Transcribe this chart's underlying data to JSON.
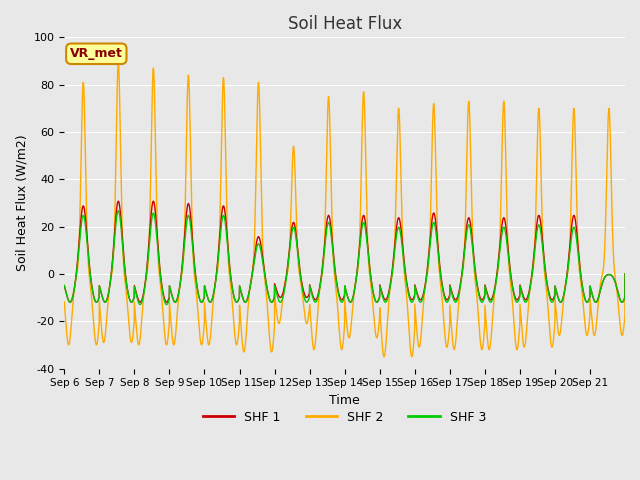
{
  "title": "Soil Heat Flux",
  "xlabel": "Time",
  "ylabel": "Soil Heat Flux (W/m2)",
  "ylim": [
    -40,
    100
  ],
  "yticks": [
    -40,
    -20,
    0,
    20,
    40,
    60,
    80,
    100
  ],
  "xtick_labels": [
    "Sep 6",
    "Sep 7",
    "Sep 8",
    "Sep 9",
    "Sep 10",
    "Sep 11",
    "Sep 12",
    "Sep 13",
    "Sep 14",
    "Sep 15",
    "Sep 16",
    "Sep 17",
    "Sep 18",
    "Sep 19",
    "Sep 20",
    "Sep 21"
  ],
  "legend_labels": [
    "SHF 1",
    "SHF 2",
    "SHF 3"
  ],
  "legend_colors": [
    "#cc0000",
    "#ffaa00",
    "#00cc00"
  ],
  "shf1_color": "#cc0000",
  "shf2_color": "#ffaa00",
  "shf3_color": "#00cc00",
  "annotation_text": "VR_met",
  "annotation_bg": "#ffff99",
  "annotation_border": "#cc8800",
  "bg_color": "#e8e8e8",
  "plot_bg": "#e8e8e8",
  "grid_color": "#ffffff",
  "n_days": 16,
  "peaks_shf2": [
    81,
    89,
    87,
    84,
    83,
    81,
    54,
    75,
    77,
    70,
    72,
    73,
    73,
    70,
    70,
    70
  ],
  "troughs_shf2": [
    -30,
    -29,
    -30,
    -30,
    -30,
    -33,
    -21,
    -32,
    -27,
    -35,
    -31,
    -32,
    -32,
    -31,
    -26,
    -26
  ],
  "peaks_shf1": [
    29,
    31,
    31,
    30,
    29,
    16,
    22,
    25,
    25,
    24,
    26,
    24,
    24,
    25,
    25,
    0
  ],
  "troughs_shf1": [
    -12,
    -12,
    -12,
    -12,
    -12,
    -12,
    -10,
    -11,
    -12,
    -11,
    -11,
    -11,
    -11,
    -11,
    -12,
    -12
  ],
  "peaks_shf3": [
    25,
    27,
    26,
    25,
    25,
    13,
    20,
    22,
    22,
    20,
    22,
    21,
    20,
    21,
    20,
    0
  ],
  "troughs_shf3": [
    -12,
    -12,
    -13,
    -12,
    -12,
    -12,
    -12,
    -12,
    -12,
    -12,
    -12,
    -12,
    -12,
    -12,
    -12,
    -12
  ]
}
